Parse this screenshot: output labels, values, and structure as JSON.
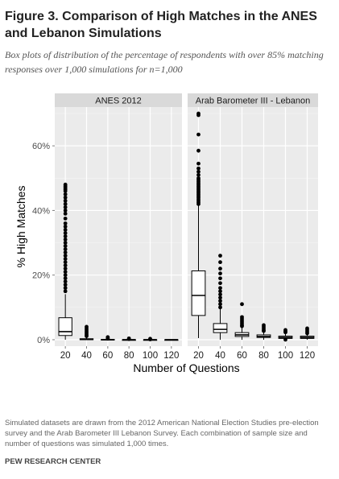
{
  "header": {
    "title": "Figure 3. Comparison of High Matches in the ANES and Lebanon Simulations",
    "subtitle": "Box plots of distribution of the percentage of respondents with over 85% matching responses over 1,000 simulations for n=1,000"
  },
  "footer": {
    "note": "Simulated datasets are drawn from the 2012 American National Election Studies pre-election survey and the Arab Barometer III Lebanon Survey. Each combination of sample size and number of questions was simulated 1,000 times.",
    "source": "PEW RESEARCH CENTER"
  },
  "chart_data": {
    "type": "boxplot",
    "xlabel": "Number of Questions",
    "ylabel": "% High Matches",
    "ylim": [
      -0.02,
      0.72
    ],
    "yticks": [
      0,
      0.2,
      0.4,
      0.6
    ],
    "ytick_labels": [
      "0%",
      "20%",
      "40%",
      "60%"
    ],
    "categories": [
      "20",
      "40",
      "60",
      "80",
      "100",
      "120"
    ],
    "grid": true,
    "facets": [
      {
        "title": "ANES 2012",
        "boxes": [
          {
            "x": "20",
            "whisker_low": 0.0,
            "q1": 0.013,
            "median": 0.025,
            "q3": 0.068,
            "whisker_high": 0.141,
            "outliers": [
              0.48,
              0.475,
              0.47,
              0.465,
              0.46,
              0.45,
              0.44,
              0.43,
              0.42,
              0.41,
              0.4,
              0.39,
              0.375,
              0.36,
              0.35,
              0.34,
              0.33,
              0.32,
              0.31,
              0.3,
              0.29,
              0.28,
              0.27,
              0.26,
              0.25,
              0.24,
              0.23,
              0.22,
              0.21,
              0.2,
              0.19,
              0.18,
              0.17,
              0.16,
              0.15
            ]
          },
          {
            "x": "40",
            "whisker_low": 0.0,
            "q1": 0.0,
            "median": 0.001,
            "q3": 0.003,
            "whisker_high": 0.008,
            "outliers": [
              0.04,
              0.035,
              0.03,
              0.025,
              0.02,
              0.015,
              0.011
            ]
          },
          {
            "x": "60",
            "whisker_low": 0.0,
            "q1": 0.0,
            "median": 0.0,
            "q3": 0.001,
            "whisker_high": 0.002,
            "outliers": [
              0.008,
              0.005,
              0.003
            ]
          },
          {
            "x": "80",
            "whisker_low": 0.0,
            "q1": 0.0,
            "median": 0.0,
            "q3": 0.0,
            "whisker_high": 0.0,
            "outliers": [
              0.004,
              0.002
            ]
          },
          {
            "x": "100",
            "whisker_low": 0.0,
            "q1": 0.0,
            "median": 0.0,
            "q3": 0.0,
            "whisker_high": 0.0,
            "outliers": [
              0.003,
              0.001
            ]
          },
          {
            "x": "120",
            "whisker_low": 0.0,
            "q1": 0.0,
            "median": 0.0,
            "q3": 0.0,
            "whisker_high": 0.0,
            "outliers": []
          }
        ]
      },
      {
        "title": "Arab Barometer III - Lebanon",
        "boxes": [
          {
            "x": "20",
            "whisker_low": 0.005,
            "q1": 0.075,
            "median": 0.137,
            "q3": 0.213,
            "whisker_high": 0.415,
            "outliers": [
              0.7,
              0.695,
              0.635,
              0.585,
              0.545,
              0.53,
              0.52,
              0.51,
              0.5,
              0.495,
              0.49,
              0.485,
              0.48,
              0.475,
              0.47,
              0.465,
              0.46,
              0.455,
              0.45,
              0.445,
              0.44,
              0.435,
              0.43,
              0.425,
              0.42
            ]
          },
          {
            "x": "40",
            "whisker_low": 0.0,
            "q1": 0.022,
            "median": 0.032,
            "q3": 0.05,
            "whisker_high": 0.095,
            "outliers": [
              0.26,
              0.24,
              0.22,
              0.205,
              0.19,
              0.175,
              0.16,
              0.15,
              0.14,
              0.13,
              0.12,
              0.11,
              0.1
            ]
          },
          {
            "x": "60",
            "whisker_low": 0.0,
            "q1": 0.01,
            "median": 0.015,
            "q3": 0.022,
            "whisker_high": 0.04,
            "outliers": [
              0.11,
              0.07,
              0.065,
              0.06,
              0.055,
              0.05,
              0.045,
              0.042
            ]
          },
          {
            "x": "80",
            "whisker_low": 0.0,
            "q1": 0.007,
            "median": 0.01,
            "q3": 0.015,
            "whisker_high": 0.025,
            "outliers": [
              0.045,
              0.04,
              0.035,
              0.03,
              0.027
            ]
          },
          {
            "x": "100",
            "whisker_low": 0.0,
            "q1": 0.004,
            "median": 0.007,
            "q3": 0.011,
            "whisker_high": 0.02,
            "outliers": [
              0.03,
              0.026,
              0.023,
              0.0
            ]
          },
          {
            "x": "120",
            "whisker_low": 0.0,
            "q1": 0.004,
            "median": 0.007,
            "q3": 0.011,
            "whisker_high": 0.018,
            "outliers": [
              0.035,
              0.03,
              0.025,
              0.02
            ]
          }
        ]
      }
    ]
  },
  "colors": {
    "panel_bg": "#ebebeb",
    "strip_bg": "#d9d9d9",
    "grid_major": "#ffffff",
    "grid_minor": "#f5f5f5",
    "box_fill": "#ffffff",
    "ink": "#000000",
    "axis_text": "#4d4d4d"
  }
}
